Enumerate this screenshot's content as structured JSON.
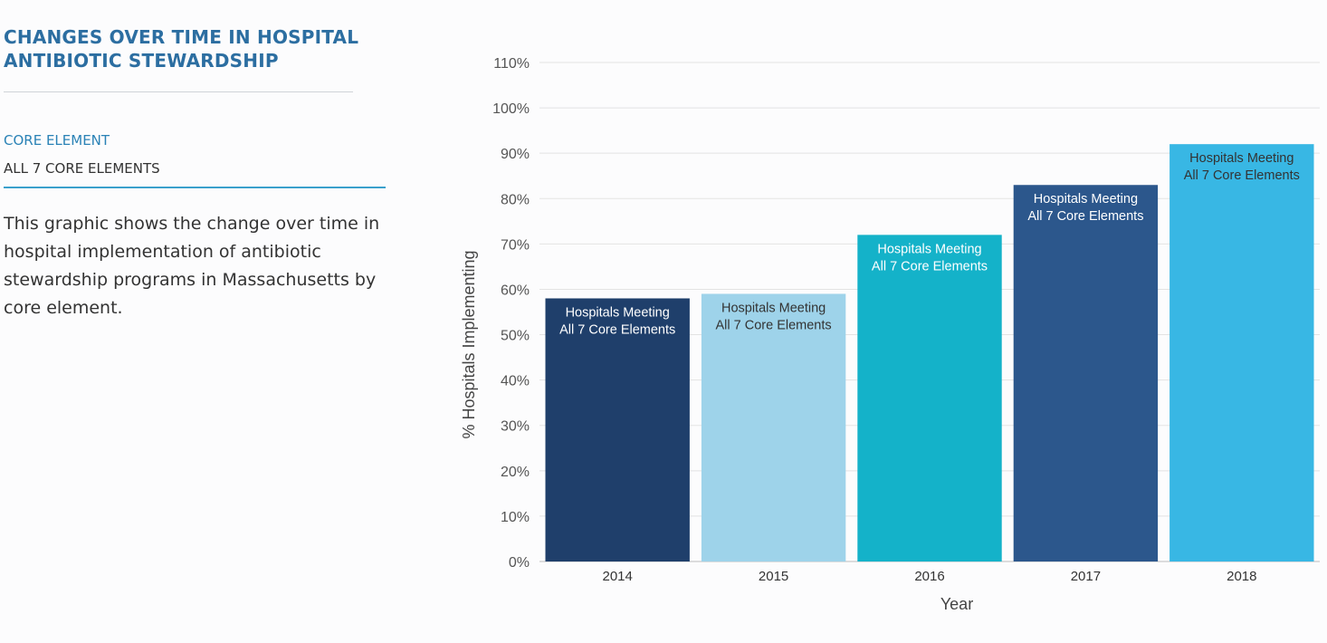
{
  "panel": {
    "title_line1": "CHANGES OVER TIME IN HOSPITAL",
    "title_line2": "ANTIBIOTIC STEWARDSHIP",
    "filter_label": "CORE ELEMENT",
    "filter_value": "ALL 7 CORE ELEMENTS",
    "description": "This graphic shows the change over time in hospital implementation of antibiotic stewardship programs in Massachusetts by core element."
  },
  "chart_data": {
    "type": "bar",
    "title": "",
    "xlabel": "Year",
    "ylabel": "% Hospitals Implementing",
    "categories": [
      "2014",
      "2015",
      "2016",
      "2017",
      "2018"
    ],
    "values": [
      58,
      59,
      72,
      83,
      92
    ],
    "ylim": [
      0,
      110
    ],
    "y_ticks": [
      0,
      10,
      20,
      30,
      40,
      50,
      60,
      70,
      80,
      90,
      100,
      110
    ],
    "y_tick_suffix": "%",
    "bar_label_line1": "Hospitals Meeting",
    "bar_label_line2": "All 7 Core Elements",
    "bar_colors": [
      "#1f3f6b",
      "#9ed3ea",
      "#14b2c9",
      "#2c578c",
      "#38b7e4"
    ],
    "bar_label_colors": [
      "#ffffff",
      "#333333",
      "#ffffff",
      "#ffffff",
      "#333333"
    ],
    "grid": true,
    "legend": "none"
  }
}
